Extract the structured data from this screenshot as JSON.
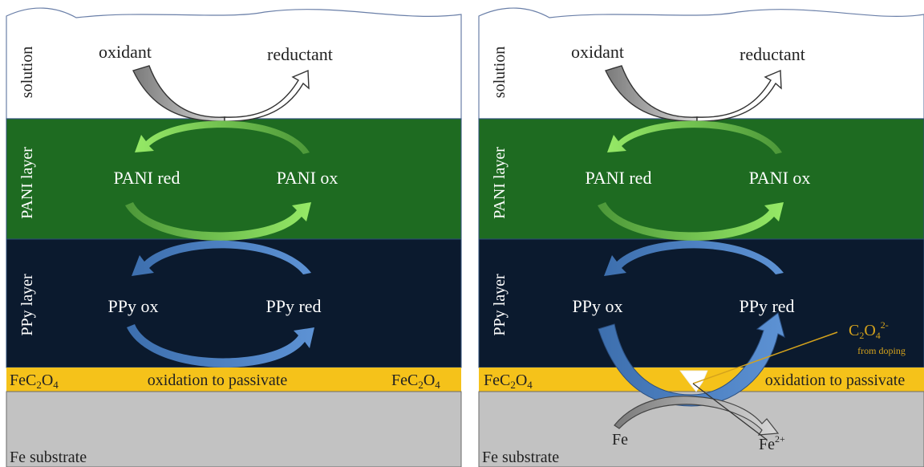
{
  "panels": [
    {
      "layers": {
        "solution": "solution",
        "pani": "PANI layer",
        "ppy": "PPy layer",
        "substrate": "Fe substrate"
      },
      "labels": {
        "oxidant": "oxidant",
        "reductant": "reductant",
        "pani_red": "PANI red",
        "pani_ox": "PANI ox",
        "ppy_ox": "PPy ox",
        "ppy_red": "PPy red",
        "passivate": "oxidation to passivate",
        "fec2o4_left": "FeC2O4",
        "fec2o4_right": "FeC2O4"
      }
    },
    {
      "layers": {
        "solution": "solution",
        "pani": "PANI layer",
        "ppy": "PPy layer",
        "substrate": "Fe substrate"
      },
      "labels": {
        "oxidant": "oxidant",
        "reductant": "reductant",
        "pani_red": "PANI red",
        "pani_ox": "PANI ox",
        "ppy_ox": "PPy ox",
        "ppy_red": "PPy red",
        "passivate": "oxidation to passivate",
        "fec2o4_left": "FeC2O4",
        "fe": "Fe",
        "fe2": "Fe2+",
        "c2o4": "C2O42-",
        "from_doping": "from doping"
      }
    }
  ],
  "colors": {
    "pani_layer": "#1e6b21",
    "ppy_layer": "#0b1a2e",
    "fec2o4_layer": "#f5c21a",
    "substrate": "#c2c2c2",
    "pani_arrow": "#7ddc52",
    "ppy_arrow": "#4a7fc1",
    "annotation": "#d4a21c"
  }
}
